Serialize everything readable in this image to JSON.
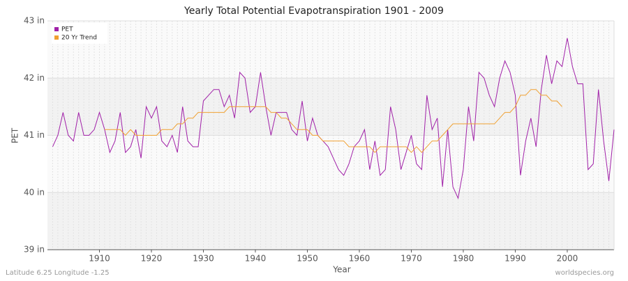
{
  "chart_data": {
    "type": "line",
    "title": "Yearly Total Potential Evapotranspiration 1901 - 2009",
    "x_label": "Year",
    "y_label": "PET",
    "footer_left": "Latitude 6.25 Longitude -1.25",
    "footer_right": "worldspecies.org",
    "x": [
      1901,
      1902,
      1903,
      1904,
      1905,
      1906,
      1907,
      1908,
      1909,
      1910,
      1911,
      1912,
      1913,
      1914,
      1915,
      1916,
      1917,
      1918,
      1919,
      1920,
      1921,
      1922,
      1923,
      1924,
      1925,
      1926,
      1927,
      1928,
      1929,
      1930,
      1931,
      1932,
      1933,
      1934,
      1935,
      1936,
      1937,
      1938,
      1939,
      1940,
      1941,
      1942,
      1943,
      1944,
      1945,
      1946,
      1947,
      1948,
      1949,
      1950,
      1951,
      1952,
      1953,
      1954,
      1955,
      1956,
      1957,
      1958,
      1959,
      1960,
      1961,
      1962,
      1963,
      1964,
      1965,
      1966,
      1967,
      1968,
      1969,
      1970,
      1971,
      1972,
      1973,
      1974,
      1975,
      1976,
      1977,
      1978,
      1979,
      1980,
      1981,
      1982,
      1983,
      1984,
      1985,
      1986,
      1987,
      1988,
      1989,
      1990,
      1991,
      1992,
      1993,
      1994,
      1995,
      1996,
      1997,
      1998,
      1999,
      2000,
      2001,
      2002,
      2003,
      2004,
      2005,
      2006,
      2007,
      2008,
      2009
    ],
    "series": [
      {
        "name": "PET",
        "color": "#a020a8",
        "values": [
          40.8,
          41.0,
          41.4,
          41.0,
          40.9,
          41.4,
          41.0,
          41.0,
          41.1,
          41.4,
          41.1,
          40.7,
          40.9,
          41.4,
          40.7,
          40.8,
          41.1,
          40.6,
          41.5,
          41.3,
          41.5,
          40.9,
          40.8,
          41.0,
          40.7,
          41.5,
          40.9,
          40.8,
          40.8,
          41.6,
          41.7,
          41.8,
          41.8,
          41.5,
          41.7,
          41.3,
          42.1,
          42.0,
          41.4,
          41.5,
          42.1,
          41.5,
          41.0,
          41.4,
          41.4,
          41.4,
          41.1,
          41.0,
          41.6,
          40.9,
          41.3,
          41.0,
          40.9,
          40.8,
          40.6,
          40.4,
          40.3,
          40.5,
          40.8,
          40.9,
          41.1,
          40.4,
          40.9,
          40.3,
          40.4,
          41.5,
          41.1,
          40.4,
          40.7,
          41.0,
          40.5,
          40.4,
          41.7,
          41.1,
          41.3,
          40.1,
          41.1,
          40.1,
          39.9,
          40.4,
          41.5,
          40.9,
          42.1,
          42.0,
          41.7,
          41.5,
          42.0,
          42.3,
          42.1,
          41.7,
          40.3,
          40.9,
          41.3,
          40.8,
          41.8,
          42.4,
          41.9,
          42.3,
          42.2,
          42.7,
          42.2,
          41.9,
          41.9,
          40.4,
          40.5,
          41.8,
          40.9,
          40.2,
          41.1
        ]
      },
      {
        "name": "20 Yr Trend",
        "color": "#f0a030",
        "values": [
          null,
          null,
          null,
          null,
          null,
          null,
          null,
          null,
          null,
          null,
          41.1,
          41.1,
          41.1,
          41.1,
          41.0,
          41.1,
          41.0,
          41.0,
          41.0,
          41.0,
          41.0,
          41.1,
          41.1,
          41.1,
          41.2,
          41.2,
          41.3,
          41.3,
          41.4,
          41.4,
          41.4,
          41.4,
          41.4,
          41.4,
          41.5,
          41.5,
          41.5,
          41.5,
          41.5,
          41.5,
          41.5,
          41.5,
          41.4,
          41.4,
          41.3,
          41.3,
          41.2,
          41.1,
          41.1,
          41.1,
          41.0,
          41.0,
          40.9,
          40.9,
          40.9,
          40.9,
          40.9,
          40.8,
          40.8,
          40.8,
          40.8,
          40.8,
          40.7,
          40.8,
          40.8,
          40.8,
          40.8,
          40.8,
          40.8,
          40.7,
          40.8,
          40.7,
          40.8,
          40.9,
          40.9,
          41.0,
          41.1,
          41.2,
          41.2,
          41.2,
          41.2,
          41.2,
          41.2,
          41.2,
          41.2,
          41.2,
          41.3,
          41.4,
          41.4,
          41.5,
          41.7,
          41.7,
          41.8,
          41.8,
          41.7,
          41.7,
          41.6,
          41.6,
          41.5,
          null,
          null,
          null,
          null,
          null,
          null,
          null,
          null,
          null,
          null
        ]
      }
    ],
    "xlim": [
      1900,
      2009
    ],
    "xticks": [
      1910,
      1920,
      1930,
      1940,
      1950,
      1960,
      1970,
      1980,
      1990,
      2000
    ],
    "ylim": [
      39,
      43
    ],
    "yticks": [
      {
        "value": 39,
        "label": "39 in"
      },
      {
        "value": 40,
        "label": "40 in"
      },
      {
        "value": 41,
        "label": "41 in"
      },
      {
        "value": 42,
        "label": "42 in"
      },
      {
        "value": 43,
        "label": "43 in"
      }
    ],
    "grid": true,
    "legend": "top-left"
  }
}
